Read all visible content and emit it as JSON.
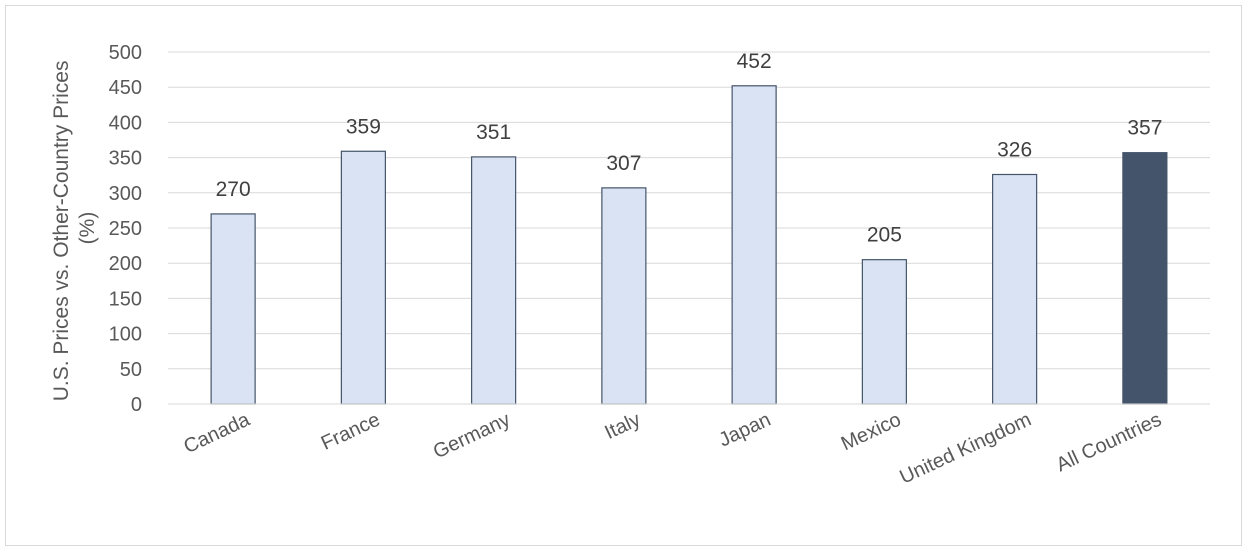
{
  "chart_data": {
    "type": "bar",
    "title": "",
    "xlabel": "",
    "ylabel": "U.S. Prices vs. Other-Country Prices (%)",
    "ylabel_lines": [
      "U.S. Prices vs. Other-Country Prices",
      "(%)"
    ],
    "categories": [
      "Canada",
      "France",
      "Germany",
      "Italy",
      "Japan",
      "Mexico",
      "United Kingdom",
      "All Countries"
    ],
    "values": [
      270,
      359,
      351,
      307,
      452,
      205,
      326,
      357
    ],
    "data_labels": [
      "270",
      "359",
      "351",
      "307",
      "452",
      "205",
      "326",
      "357"
    ],
    "ylim": [
      0,
      500
    ],
    "yticks": [
      "0",
      "50",
      "100",
      "150",
      "200",
      "250",
      "300",
      "350",
      "400",
      "450",
      "500"
    ],
    "grid": true,
    "legend": "none",
    "colors": {
      "bar_fill": "#dae3f3",
      "bar_stroke": "#44546a",
      "highlight_fill": "#44546a",
      "gridline": "#d9d9d9"
    },
    "highlight_category": "All Countries"
  }
}
